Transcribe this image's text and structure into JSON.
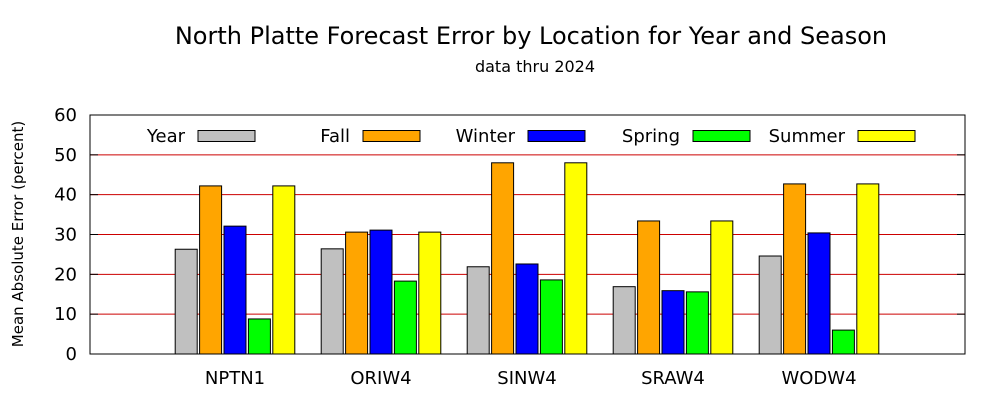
{
  "chart_data": {
    "type": "bar",
    "title": "North Platte Forecast Error by Location for Year and Season",
    "subtitle": "data thru 2024",
    "ylabel": "Mean Absolute Error (percent)",
    "xlabel": "",
    "ylim": [
      0,
      60
    ],
    "yticks": [
      0,
      10,
      20,
      30,
      40,
      50,
      60
    ],
    "grid": true,
    "grid_color": "#cc0000",
    "legend_position": "top",
    "categories": [
      "NPTN1",
      "ORIW4",
      "SINW4",
      "SRAW4",
      "WODW4"
    ],
    "series": [
      {
        "name": "Year",
        "color": "#c0c0c0",
        "values": [
          26.3,
          26.4,
          21.9,
          16.9,
          24.6
        ]
      },
      {
        "name": "Fall",
        "color": "#ffa500",
        "values": [
          42.2,
          30.6,
          48.0,
          33.4,
          42.7
        ]
      },
      {
        "name": "Winter",
        "color": "#0000ff",
        "values": [
          32.1,
          31.1,
          22.6,
          15.9,
          30.4
        ]
      },
      {
        "name": "Spring",
        "color": "#00ff00",
        "values": [
          8.8,
          18.3,
          18.6,
          15.6,
          6.0
        ]
      },
      {
        "name": "Summer",
        "color": "#ffff00",
        "values": [
          42.2,
          30.6,
          48.0,
          33.4,
          42.7
        ]
      }
    ]
  }
}
